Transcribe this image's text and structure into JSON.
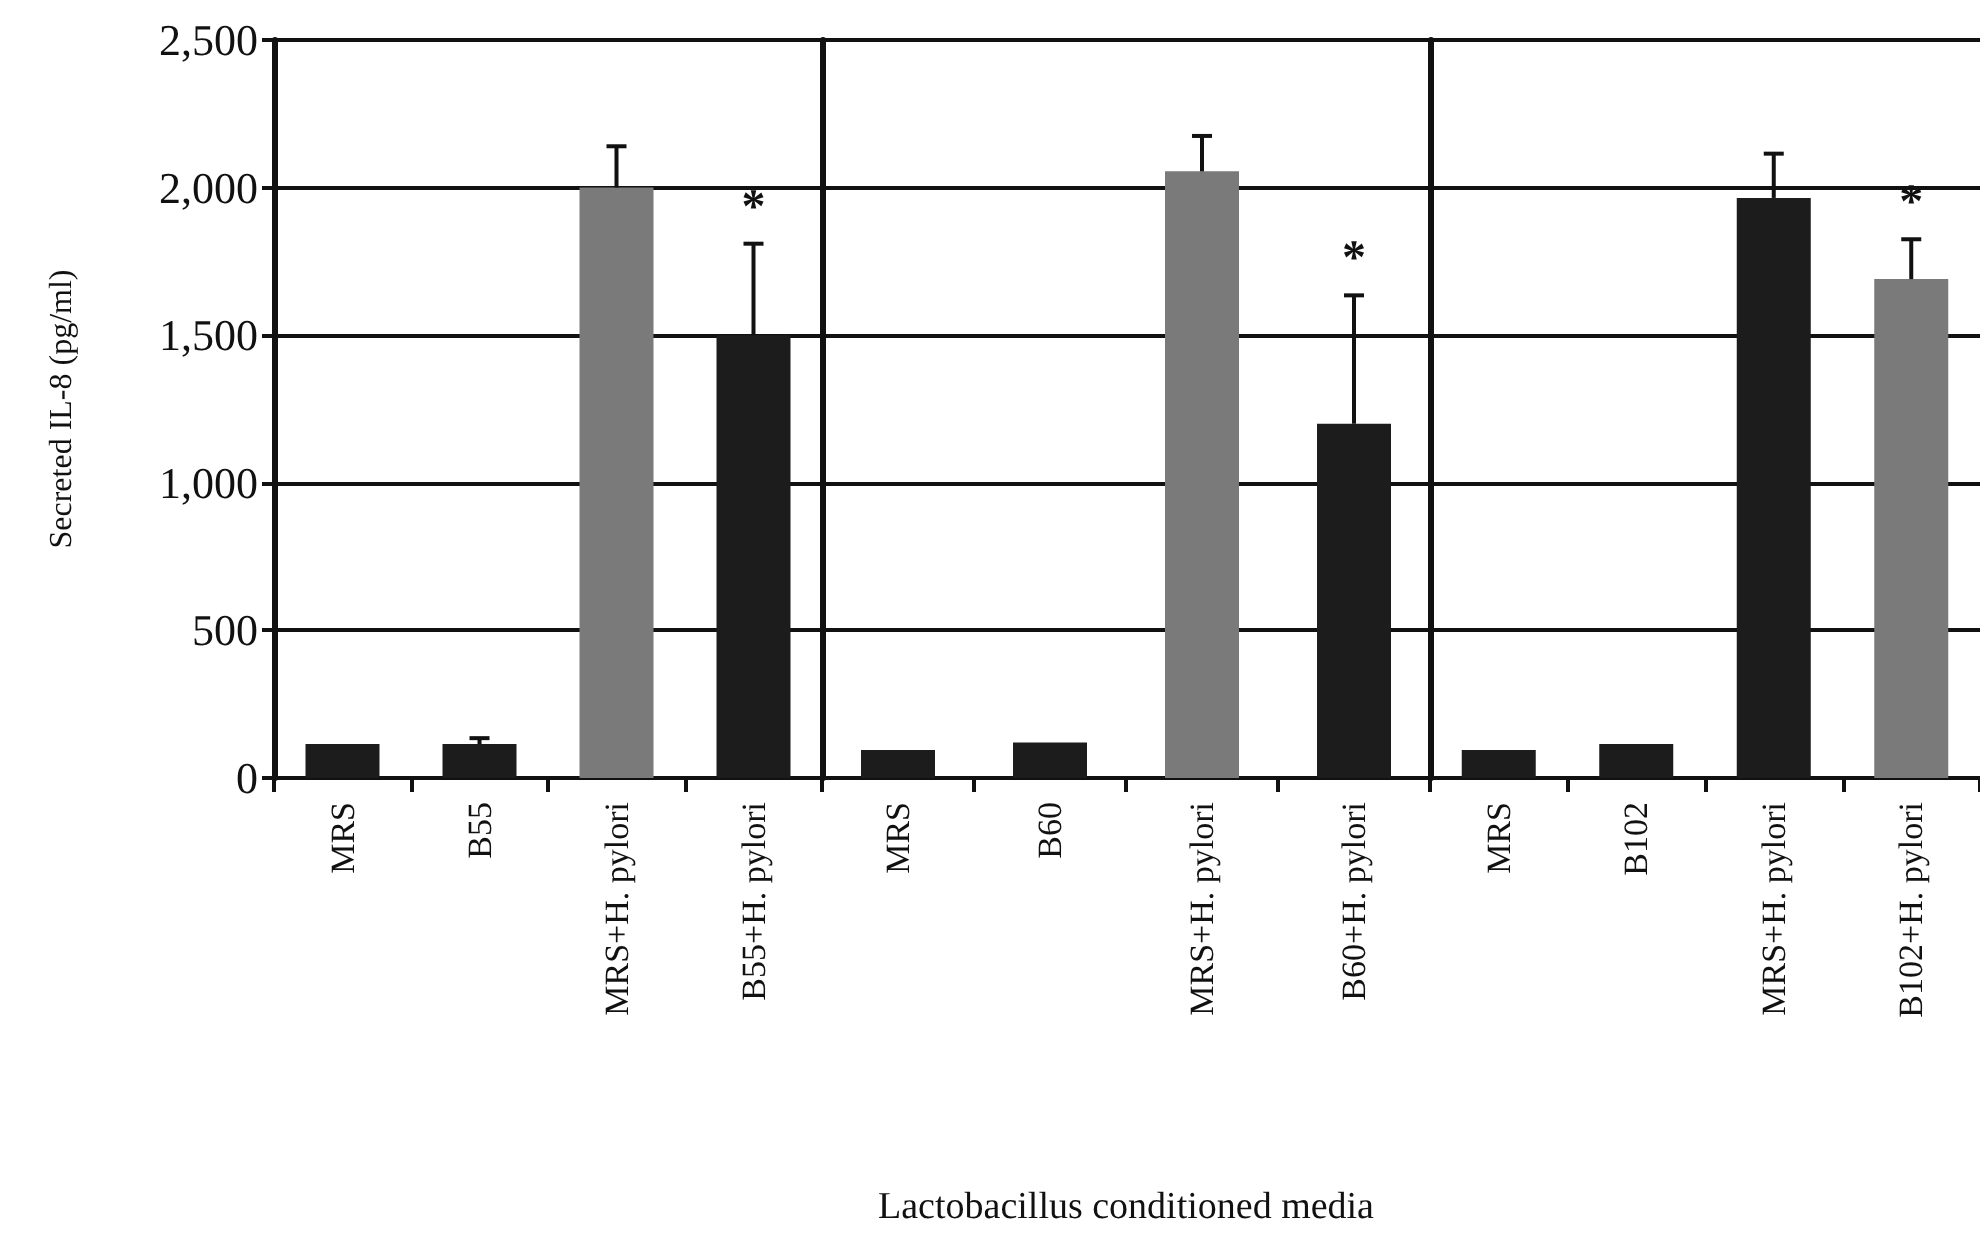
{
  "chart_data": [
    {
      "type": "bar",
      "ylabel": "Secreted IL-8 (pg/ml)",
      "categories": [
        "MRS",
        "B55",
        "MRS+H. pylori",
        "B55+H. pylori"
      ],
      "values": [
        115,
        115,
        2000,
        1500
      ],
      "colors": [
        "#1c1c1c",
        "#1c1c1c",
        "#7a7a7a",
        "#1c1c1c"
      ],
      "errors": [
        null,
        [
          115,
          135
        ],
        [
          2000,
          2140
        ],
        [
          1500,
          1810
        ]
      ],
      "ylim": [
        0,
        2500
      ],
      "yticks": [
        {
          "value": 0,
          "label": "0"
        },
        {
          "value": 500,
          "label": "500"
        },
        {
          "value": 1000,
          "label": "1,000"
        },
        {
          "value": 1500,
          "label": "1,500"
        },
        {
          "value": 2000,
          "label": "2,000"
        },
        {
          "value": 2500,
          "label": "2,500"
        }
      ],
      "grid": "y",
      "annotations": [
        "*"
      ]
    },
    {
      "type": "bar",
      "xlabel": "Lactobacillus conditioned media",
      "categories": [
        "MRS",
        "B60",
        "MRS+H. pylori",
        "B60+H. pylori"
      ],
      "values": [
        95,
        120,
        2055,
        1200
      ],
      "colors": [
        "#1c1c1c",
        "#1c1c1c",
        "#7a7a7a",
        "#1c1c1c"
      ],
      "errors": [
        null,
        null,
        [
          2055,
          2175
        ],
        [
          1200,
          1635
        ]
      ],
      "ylim": [
        0,
        2500
      ],
      "yticks": [
        0,
        500,
        1000,
        1500,
        2000,
        2500
      ],
      "grid": "y",
      "tick_labels": "x",
      "annotations": [
        "*"
      ]
    },
    {
      "type": "bar",
      "categories": [
        "MRS",
        "B102",
        "MRS+H. pylori",
        "B102+H. pylori"
      ],
      "values": [
        95,
        115,
        1965,
        1690
      ],
      "colors": [
        "#1c1c1c",
        "#1c1c1c",
        "#1c1c1c",
        "#7a7a7a"
      ],
      "errors": [
        null,
        null,
        [
          1965,
          2115
        ],
        [
          1690,
          1825
        ]
      ],
      "ylim": [
        0,
        2500
      ],
      "yticks": [
        0,
        500,
        1000,
        1500,
        2000,
        2500
      ],
      "grid": "y",
      "tick_labels": "x",
      "annotations": [
        "*"
      ]
    }
  ]
}
